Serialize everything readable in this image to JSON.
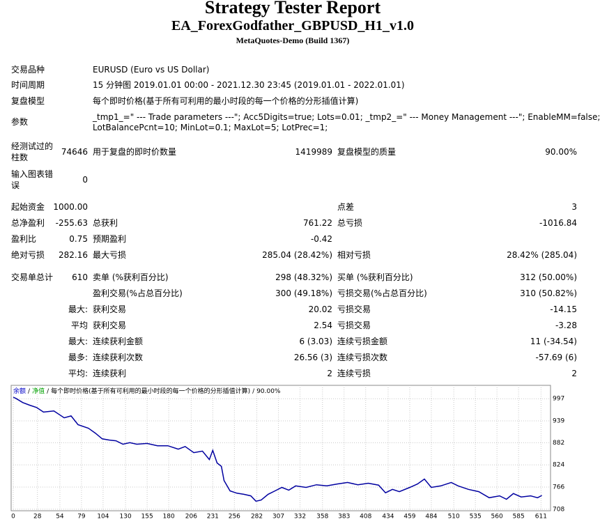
{
  "header": {
    "title": "Strategy Tester Report",
    "subtitle": "EA_ForexGodfather_GBPUSD_H1_v1.0",
    "server": "MetaQuotes-Demo (Build 1367)"
  },
  "info": [
    {
      "label": "交易品种",
      "value": [
        "EURUSD (Euro vs US Dollar)"
      ]
    },
    {
      "label": "时间周期",
      "value": [
        "15 分钟图 2019.01.01 00:00 - 2021.12.30 23:45 (2019.01.01 - 2022.01.01)"
      ]
    },
    {
      "label": "复盘模型",
      "value": [
        "每个即时价格(基于所有可利用的最小时段的每一个价格的分形插值计算)"
      ]
    },
    {
      "label": "参数",
      "value": [
        "_tmp1_=\" --- Trade parameters ---\"; Acc5Digits=true; Lots=0.01; _tmp2_=\" --- Money Management ---\"; EnableMM=false;",
        "LotBalancePcnt=10; MinLot=0.1; MaxLot=5; LotPrec=1;"
      ]
    }
  ],
  "stats": [
    [
      [
        "经测试过的",
        "柱数"
      ],
      "74646",
      "用于复盘的即时价数量",
      "1419989",
      "复盘模型的质量",
      "90.00%"
    ],
    [
      [
        "输入图表错",
        "误"
      ],
      "0",
      null,
      null,
      null,
      null
    ],
    [
      "起始资金",
      "1000.00",
      null,
      null,
      "点差",
      "3"
    ],
    [
      "总净盈利",
      "-255.63",
      "总获利",
      "761.22",
      "总亏损",
      "-1016.84"
    ],
    [
      "盈利比",
      "0.75",
      "预期盈利",
      "-0.42",
      null,
      null
    ],
    [
      "绝对亏损",
      "282.16",
      "最大亏损",
      "285.04 (28.42%)",
      "相对亏损",
      "28.42% (285.04)"
    ],
    [
      "交易单总计",
      "610",
      "卖单 (%获利百分比)",
      "298 (48.32%)",
      "买单 (%获利百分比)",
      "312 (50.00%)"
    ],
    [
      null,
      null,
      "盈利交易(%占总百分比)",
      "300 (49.18%)",
      "亏损交易(%占总百分比)",
      "310 (50.82%)"
    ],
    [
      null,
      "最大:",
      "获利交易",
      "20.02",
      "亏损交易",
      "-14.15"
    ],
    [
      null,
      "平均",
      "获利交易",
      "2.54",
      "亏损交易",
      "-3.28"
    ],
    [
      null,
      "最大:",
      "连续获利金额",
      "6 (3.03)",
      "连续亏损金额",
      "11 (-34.54)"
    ],
    [
      null,
      "最多:",
      "连续获利次数",
      "26.56 (3)",
      "连续亏损次数",
      "-57.69 (6)"
    ],
    [
      null,
      "平均:",
      "连续获利",
      "2",
      "连续亏损",
      "2"
    ]
  ],
  "chart_data": {
    "type": "line",
    "header_parts": [
      {
        "text": "余额",
        "color": "#0000c8"
      },
      {
        "text": "/"
      },
      {
        "text": "净值",
        "color": "#00a000"
      },
      {
        "text": "/"
      },
      {
        "text": "每个即时价格(基于所有可利用的最小时段的每一个价格的分形插值计算)"
      },
      {
        "text": "/"
      },
      {
        "text": "90.00%"
      }
    ],
    "series": [
      {
        "color": "#0000a0",
        "x": [
          0,
          3,
          11,
          19,
          27,
          35,
          47,
          59,
          67,
          75,
          87,
          95,
          103,
          111,
          119,
          127,
          135,
          143,
          155,
          167,
          179,
          191,
          199,
          209,
          219,
          227,
          231,
          236,
          241,
          244,
          251,
          259,
          267,
          275,
          281,
          287,
          295,
          303,
          311,
          319,
          327,
          339,
          351,
          363,
          375,
          387,
          399,
          411,
          423,
          431,
          439,
          447,
          459,
          468,
          476,
          484,
          495,
          507,
          515,
          527,
          539,
          551,
          563,
          571,
          579,
          588,
          599,
          607,
          612
        ],
        "values": [
          1001,
          998,
          987,
          980,
          974,
          962,
          965,
          947,
          952,
          929,
          920,
          907,
          892,
          889,
          887,
          878,
          882,
          878,
          880,
          874,
          874,
          865,
          872,
          856,
          860,
          838,
          862,
          829,
          820,
          783,
          756,
          750,
          747,
          743,
          729,
          732,
          747,
          756,
          765,
          758,
          769,
          765,
          772,
          769,
          774,
          778,
          772,
          776,
          771,
          751,
          760,
          754,
          765,
          774,
          787,
          765,
          769,
          778,
          769,
          760,
          754,
          738,
          743,
          734,
          749,
          740,
          743,
          738,
          744
        ]
      }
    ],
    "xlim": [
      0,
      622
    ],
    "ylim": [
      704,
      1032
    ],
    "xticks": [
      0,
      28,
      54,
      79,
      104,
      130,
      155,
      180,
      206,
      231,
      256,
      282,
      307,
      332,
      358,
      383,
      408,
      434,
      459,
      484,
      510,
      535,
      560,
      585,
      611
    ],
    "yticks": [
      997,
      939,
      882,
      824,
      766,
      708
    ],
    "grid": true
  }
}
